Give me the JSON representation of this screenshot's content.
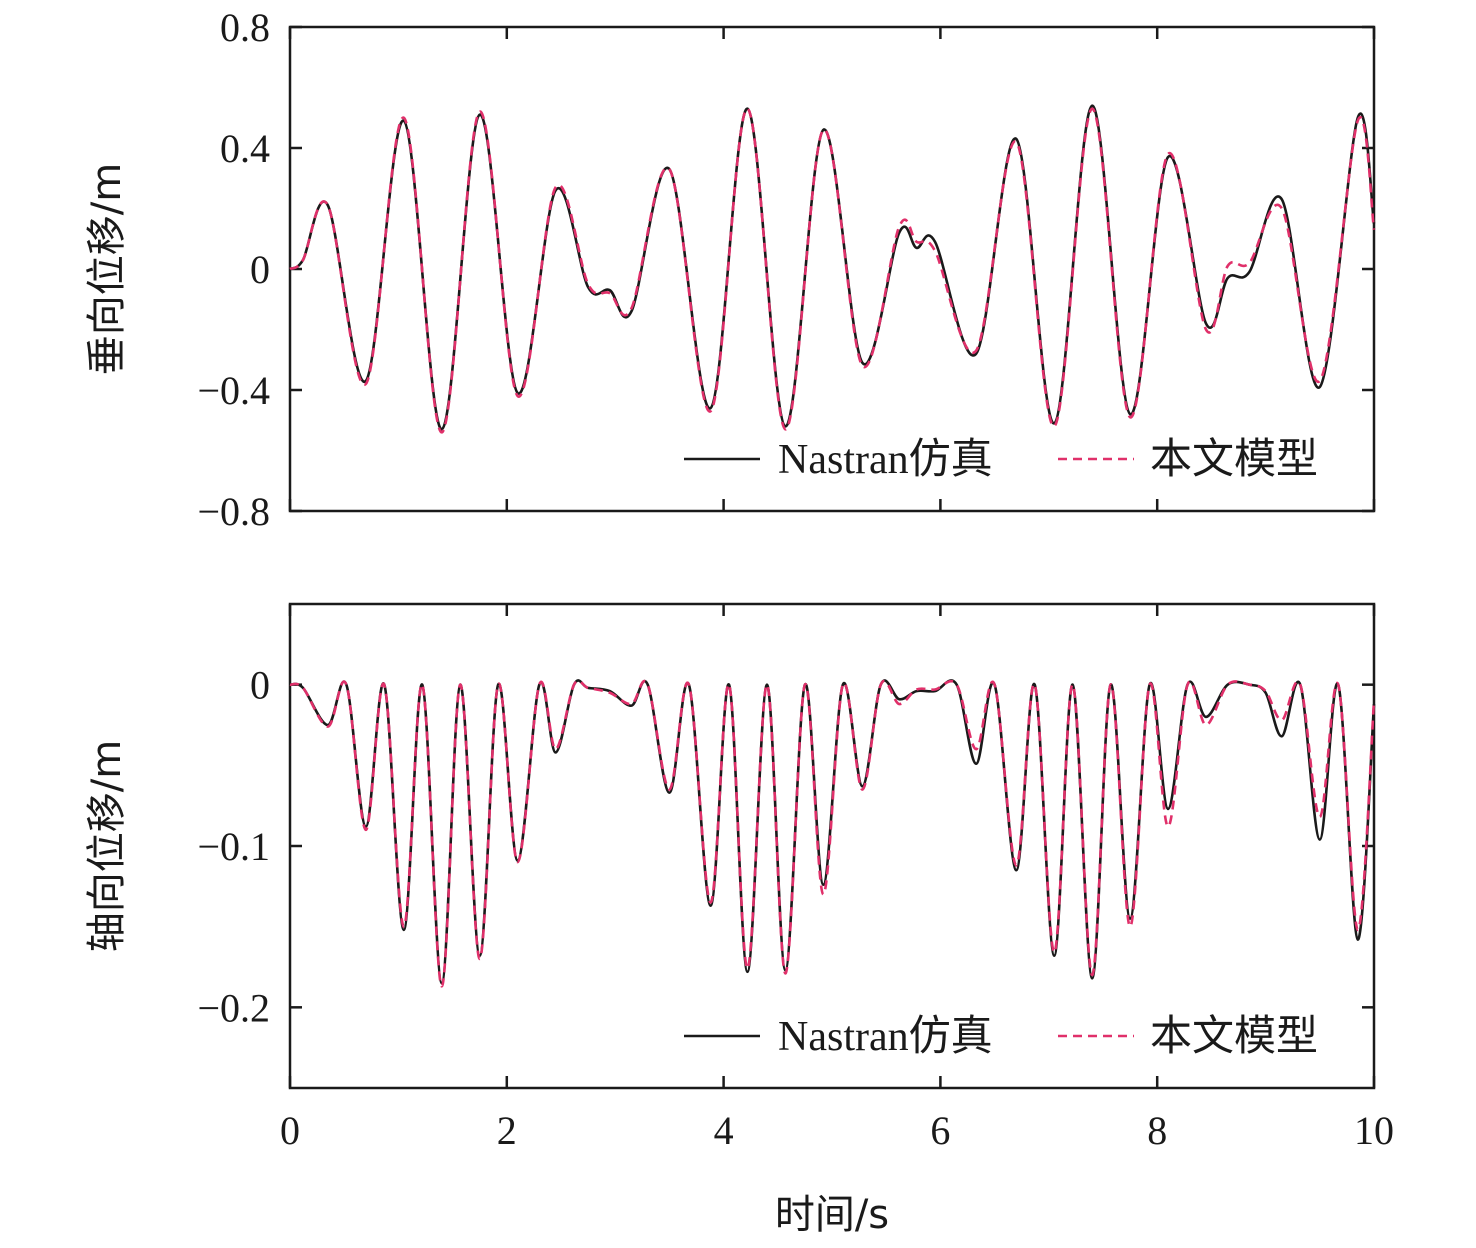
{
  "chart_data": [
    {
      "type": "line",
      "ylabel": "垂向位移/m",
      "xlabel": "",
      "xlim": [
        0,
        10
      ],
      "ylim": [
        -0.8,
        0.8
      ],
      "xticks": [
        "0",
        "2",
        "4",
        "6",
        "8",
        "10"
      ],
      "yticks": [
        {
          "value": 0.8,
          "label": "0.8"
        },
        {
          "value": 0.4,
          "label": "0.4"
        },
        {
          "value": 0,
          "label": "0"
        },
        {
          "value": -0.4,
          "label": "−0.4"
        },
        {
          "value": -0.8,
          "label": "−0.8"
        }
      ],
      "legend_position": "bottom-right",
      "x": [
        0,
        0.12,
        0.35,
        0.7,
        1.05,
        1.4,
        1.75,
        2.1,
        2.45,
        2.75,
        2.95,
        3.15,
        3.5,
        3.88,
        4.22,
        4.57,
        4.92,
        5.28,
        5.62,
        5.78,
        5.95,
        6.33,
        6.7,
        7.05,
        7.4,
        7.75,
        8.1,
        8.45,
        8.65,
        8.85,
        9.15,
        9.5,
        9.85,
        10
      ],
      "series": [
        {
          "name": "Nastran仿真",
          "style": "solid",
          "color": "#1a1a1a",
          "values": [
            0,
            0.03,
            0.21,
            -0.37,
            0.49,
            -0.53,
            0.51,
            -0.41,
            0.26,
            -0.06,
            -0.07,
            -0.14,
            0.33,
            -0.46,
            0.53,
            -0.52,
            0.46,
            -0.31,
            0.12,
            0.07,
            0.09,
            -0.28,
            0.43,
            -0.51,
            0.54,
            -0.48,
            0.37,
            -0.18,
            -0.03,
            -0.01,
            0.23,
            -0.39,
            0.5,
            0.15
          ]
        },
        {
          "name": "本文模型",
          "style": "dashed",
          "color": "#e0306a",
          "values": [
            0,
            0.03,
            0.21,
            -0.38,
            0.5,
            -0.54,
            0.52,
            -0.42,
            0.27,
            -0.05,
            -0.08,
            -0.13,
            0.33,
            -0.47,
            0.53,
            -0.53,
            0.46,
            -0.32,
            0.14,
            0.09,
            0.06,
            -0.27,
            0.42,
            -0.52,
            0.53,
            -0.49,
            0.38,
            -0.2,
            0.01,
            0.02,
            0.2,
            -0.37,
            0.49,
            0.13
          ]
        }
      ]
    },
    {
      "type": "line",
      "ylabel": "轴向位移/m",
      "xlabel": "时间/s",
      "xlim": [
        0,
        10
      ],
      "ylim": [
        -0.25,
        0.05
      ],
      "xticks": [
        "0",
        "2",
        "4",
        "6",
        "8",
        "10"
      ],
      "yticks": [
        {
          "value": 0,
          "label": "0"
        },
        {
          "value": -0.1,
          "label": "−0.1"
        },
        {
          "value": -0.2,
          "label": "−0.2"
        }
      ],
      "legend_position": "bottom-right",
      "x": [
        0,
        0.12,
        0.35,
        0.52,
        0.7,
        0.87,
        1.05,
        1.22,
        1.4,
        1.57,
        1.75,
        1.92,
        2.1,
        2.3,
        2.45,
        2.62,
        2.75,
        2.95,
        3.15,
        3.3,
        3.5,
        3.68,
        3.88,
        4.05,
        4.22,
        4.4,
        4.57,
        4.75,
        4.92,
        5.1,
        5.28,
        5.45,
        5.62,
        5.78,
        5.95,
        6.15,
        6.33,
        6.5,
        6.7,
        6.87,
        7.05,
        7.22,
        7.4,
        7.57,
        7.75,
        7.93,
        8.1,
        8.28,
        8.45,
        8.65,
        8.85,
        9.0,
        9.15,
        9.32,
        9.5,
        9.67,
        9.85,
        10
      ],
      "series": [
        {
          "name": "Nastran仿真",
          "style": "solid",
          "color": "#1a1a1a",
          "values": [
            0,
            -0.002,
            -0.025,
            0,
            -0.088,
            0,
            -0.152,
            0,
            -0.185,
            0,
            -0.168,
            0,
            -0.109,
            0,
            -0.042,
            0,
            -0.002,
            -0.004,
            -0.013,
            0,
            -0.067,
            0,
            -0.137,
            0,
            -0.178,
            0,
            -0.177,
            0,
            -0.124,
            0,
            -0.063,
            0,
            -0.009,
            -0.004,
            -0.004,
            0,
            -0.049,
            0,
            -0.115,
            0,
            -0.168,
            0,
            -0.182,
            0,
            -0.145,
            0,
            -0.077,
            0,
            -0.02,
            0,
            0,
            -0.005,
            -0.032,
            0,
            -0.096,
            0,
            -0.158,
            -0.012
          ]
        },
        {
          "name": "本文模型",
          "style": "dashed",
          "color": "#e0306a",
          "values": [
            0,
            -0.002,
            -0.026,
            0,
            -0.09,
            0,
            -0.15,
            0,
            -0.187,
            0,
            -0.17,
            0,
            -0.11,
            0,
            -0.04,
            0,
            -0.002,
            -0.005,
            -0.012,
            0,
            -0.065,
            0,
            -0.135,
            0,
            -0.176,
            0,
            -0.179,
            0,
            -0.13,
            0,
            -0.065,
            0,
            -0.012,
            -0.003,
            -0.003,
            0,
            -0.04,
            0,
            -0.112,
            0,
            -0.166,
            0,
            -0.18,
            0,
            -0.15,
            0,
            -0.088,
            0,
            -0.025,
            0,
            0,
            -0.004,
            -0.022,
            0,
            -0.082,
            0,
            -0.152,
            -0.01
          ]
        }
      ]
    }
  ]
}
